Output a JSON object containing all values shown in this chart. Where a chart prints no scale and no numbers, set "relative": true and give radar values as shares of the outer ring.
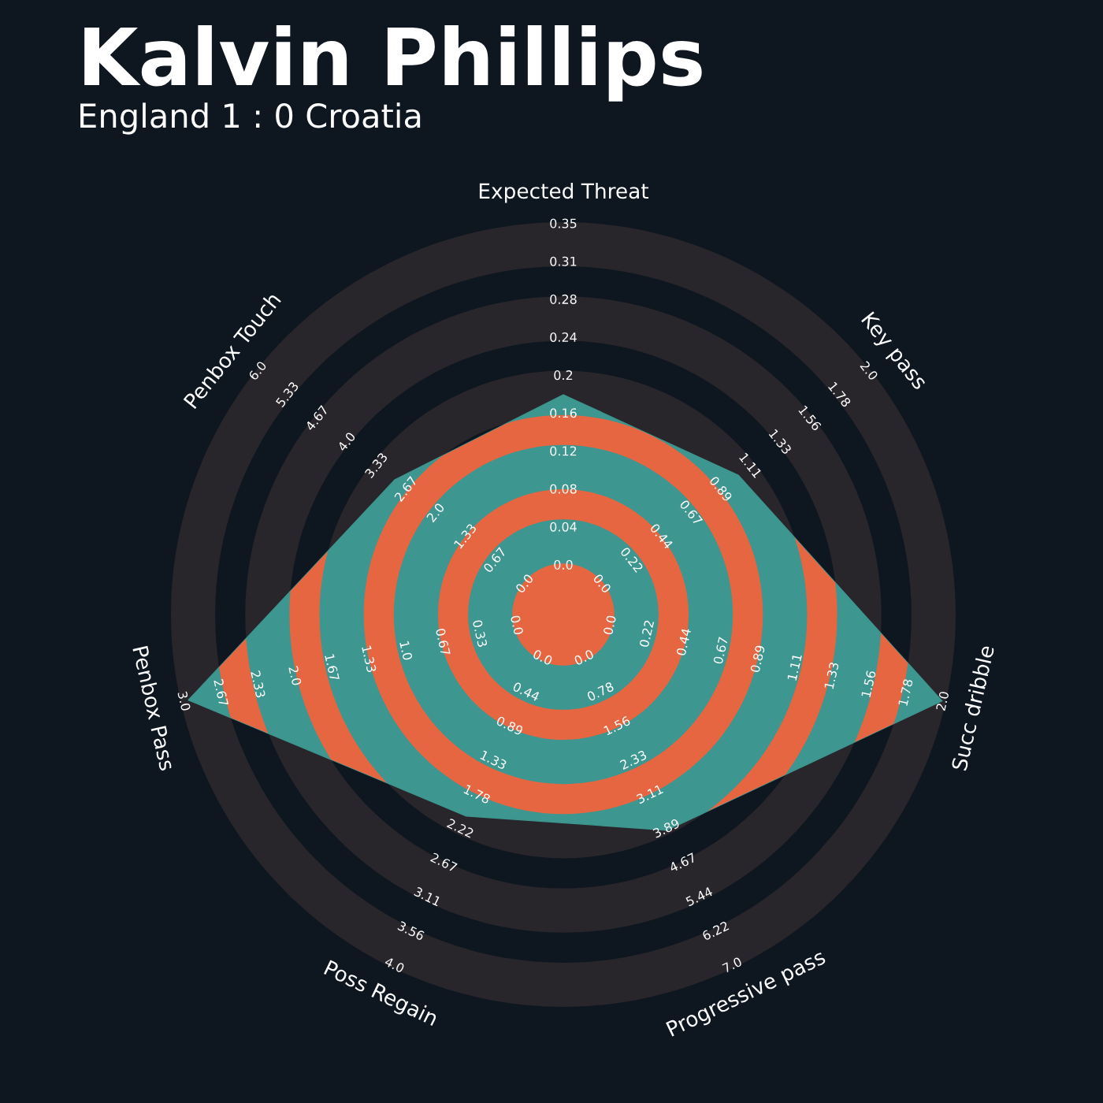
{
  "chart_data": {
    "type": "radar",
    "title": "Kalvin Phillips",
    "subtitle": "England 1 : 0 Croatia",
    "relative": true,
    "categories": [
      "Expected Threat",
      "Key pass",
      "Succ dribble",
      "Progressive pass",
      "Poss Regain",
      "Penbox Pass",
      "Penbox Touch"
    ],
    "series": [
      {
        "color": "#3d968f",
        "values": [
          0.56,
          0.57,
          0.99,
          0.61,
          0.57,
          0.98,
          0.55
        ]
      }
    ],
    "annotations": [
      {
        "text": "0.0",
        "x": "Expected Threat"
      },
      {
        "text": "0.04",
        "x": "Expected Threat"
      },
      {
        "text": "0.08",
        "x": "Expected Threat"
      },
      {
        "text": "0.12",
        "x": "Expected Threat"
      },
      {
        "text": "0.16",
        "x": "Expected Threat"
      },
      {
        "text": "0.2",
        "x": "Expected Threat"
      },
      {
        "text": "0.24",
        "x": "Expected Threat"
      },
      {
        "text": "0.28",
        "x": "Expected Threat"
      },
      {
        "text": "0.31",
        "x": "Expected Threat"
      },
      {
        "text": "0.35",
        "x": "Expected Threat"
      },
      {
        "text": "0.0",
        "x": "Key pass"
      },
      {
        "text": "0.22",
        "x": "Key pass"
      },
      {
        "text": "0.44",
        "x": "Key pass"
      },
      {
        "text": "0.67",
        "x": "Key pass"
      },
      {
        "text": "0.89",
        "x": "Key pass"
      },
      {
        "text": "1.11",
        "x": "Key pass"
      },
      {
        "text": "1.33",
        "x": "Key pass"
      },
      {
        "text": "1.56",
        "x": "Key pass"
      },
      {
        "text": "1.78",
        "x": "Key pass"
      },
      {
        "text": "2.0",
        "x": "Key pass"
      },
      {
        "text": "0.0",
        "x": "Succ dribble"
      },
      {
        "text": "0.22",
        "x": "Succ dribble"
      },
      {
        "text": "0.44",
        "x": "Succ dribble"
      },
      {
        "text": "0.67",
        "x": "Succ dribble"
      },
      {
        "text": "0.89",
        "x": "Succ dribble"
      },
      {
        "text": "1.11",
        "x": "Succ dribble"
      },
      {
        "text": "1.33",
        "x": "Succ dribble"
      },
      {
        "text": "1.56",
        "x": "Succ dribble"
      },
      {
        "text": "1.78",
        "x": "Succ dribble"
      },
      {
        "text": "2.0",
        "x": "Succ dribble"
      },
      {
        "text": "0.0",
        "x": "Progressive pass"
      },
      {
        "text": "0.78",
        "x": "Progressive pass"
      },
      {
        "text": "1.56",
        "x": "Progressive pass"
      },
      {
        "text": "2.33",
        "x": "Progressive pass"
      },
      {
        "text": "3.11",
        "x": "Progressive pass"
      },
      {
        "text": "3.89",
        "x": "Progressive pass"
      },
      {
        "text": "4.67",
        "x": "Progressive pass"
      },
      {
        "text": "5.44",
        "x": "Progressive pass"
      },
      {
        "text": "6.22",
        "x": "Progressive pass"
      },
      {
        "text": "7.0",
        "x": "Progressive pass"
      },
      {
        "text": "0.0",
        "x": "Poss Regain"
      },
      {
        "text": "0.44",
        "x": "Poss Regain"
      },
      {
        "text": "0.89",
        "x": "Poss Regain"
      },
      {
        "text": "1.33",
        "x": "Poss Regain"
      },
      {
        "text": "1.78",
        "x": "Poss Regain"
      },
      {
        "text": "2.22",
        "x": "Poss Regain"
      },
      {
        "text": "2.67",
        "x": "Poss Regain"
      },
      {
        "text": "3.11",
        "x": "Poss Regain"
      },
      {
        "text": "3.56",
        "x": "Poss Regain"
      },
      {
        "text": "4.0",
        "x": "Poss Regain"
      },
      {
        "text": "0.0",
        "x": "Penbox Pass"
      },
      {
        "text": "0.33",
        "x": "Penbox Pass"
      },
      {
        "text": "0.67",
        "x": "Penbox Pass"
      },
      {
        "text": "1.0",
        "x": "Penbox Pass"
      },
      {
        "text": "1.33",
        "x": "Penbox Pass"
      },
      {
        "text": "1.67",
        "x": "Penbox Pass"
      },
      {
        "text": "2.0",
        "x": "Penbox Pass"
      },
      {
        "text": "2.33",
        "x": "Penbox Pass"
      },
      {
        "text": "2.67",
        "x": "Penbox Pass"
      },
      {
        "text": "3.0",
        "x": "Penbox Pass"
      },
      {
        "text": "0.0",
        "x": "Penbox Touch"
      },
      {
        "text": "0.67",
        "x": "Penbox Touch"
      },
      {
        "text": "1.33",
        "x": "Penbox Touch"
      },
      {
        "text": "2.0",
        "x": "Penbox Touch"
      },
      {
        "text": "2.67",
        "x": "Penbox Touch"
      },
      {
        "text": "3.33",
        "x": "Penbox Touch"
      },
      {
        "text": "4.0",
        "x": "Penbox Touch"
      },
      {
        "text": "4.67",
        "x": "Penbox Touch"
      },
      {
        "text": "5.33",
        "x": "Penbox Touch"
      },
      {
        "text": "6.0",
        "x": "Penbox Touch"
      }
    ]
  }
}
